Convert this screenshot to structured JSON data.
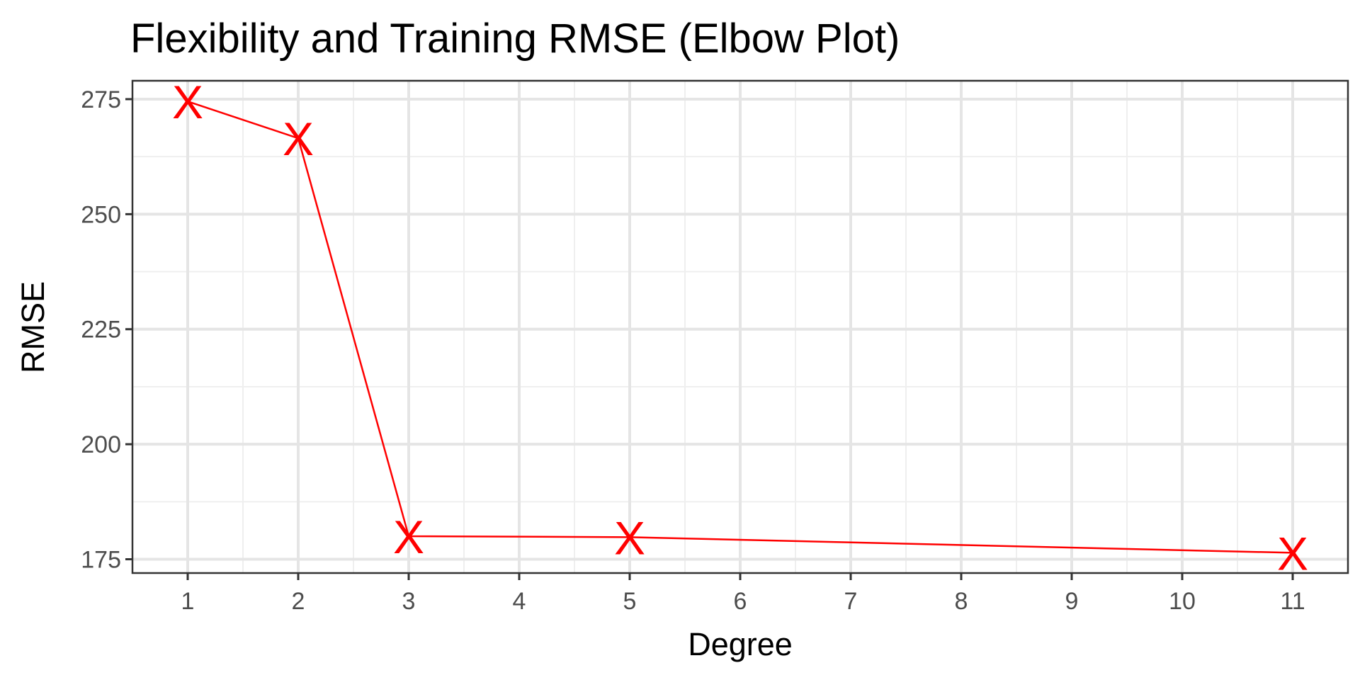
{
  "chart_data": {
    "type": "line",
    "title": "Flexibility and Training RMSE (Elbow Plot)",
    "xlabel": "Degree",
    "ylabel": "RMSE",
    "x_ticks": [
      "1",
      "2",
      "3",
      "4",
      "5",
      "6",
      "7",
      "8",
      "9",
      "10",
      "11"
    ],
    "y_ticks": [
      "175",
      "200",
      "225",
      "250",
      "275"
    ],
    "xlim": [
      0.5,
      11.5
    ],
    "ylim": [
      172,
      279
    ],
    "grid": true,
    "marker": "X",
    "series": [
      {
        "x": [
          1,
          2,
          3,
          5,
          11
        ],
        "y": [
          274.5,
          266.5,
          180,
          179.8,
          176.4
        ],
        "color": "#ff0000"
      }
    ]
  }
}
